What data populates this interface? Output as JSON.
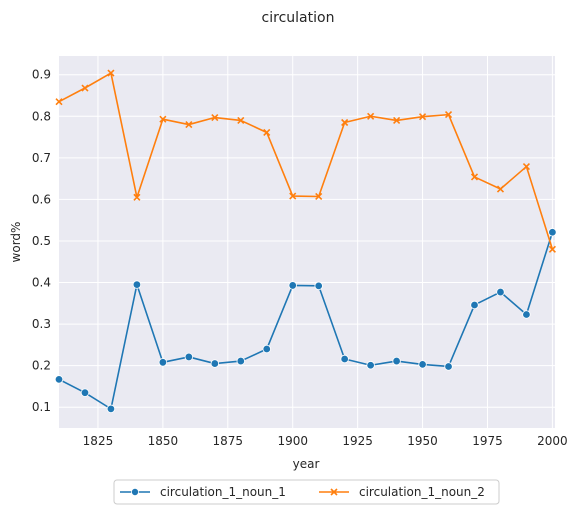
{
  "chart_data": {
    "type": "line",
    "title": "circulation",
    "xlabel": "year",
    "ylabel": "word%",
    "xlim": [
      1810,
      2001
    ],
    "ylim": [
      0.05,
      0.945
    ],
    "xticks": [
      1825,
      1850,
      1875,
      1900,
      1925,
      1950,
      1975,
      2000
    ],
    "xtick_labels": [
      "1825",
      "1850",
      "1875",
      "1900",
      "1925",
      "1950",
      "1975",
      "2000"
    ],
    "yticks": [
      0.1,
      0.2,
      0.3,
      0.4,
      0.5,
      0.6,
      0.7,
      0.8,
      0.9
    ],
    "ytick_labels": [
      "0.1",
      "0.2",
      "0.3",
      "0.4",
      "0.5",
      "0.6",
      "0.7",
      "0.8",
      "0.9"
    ],
    "grid": true,
    "legend_position": "bottom-center",
    "x": [
      1810,
      1820,
      1830,
      1840,
      1850,
      1860,
      1870,
      1880,
      1890,
      1900,
      1910,
      1920,
      1930,
      1940,
      1950,
      1960,
      1970,
      1980,
      1990,
      2000
    ],
    "series": [
      {
        "name": "circulation_1_noun_1",
        "color": "#1f77b4",
        "marker": "circle",
        "values": [
          0.167,
          0.135,
          0.096,
          0.395,
          0.208,
          0.221,
          0.205,
          0.211,
          0.24,
          0.393,
          0.392,
          0.216,
          0.201,
          0.211,
          0.203,
          0.198,
          0.346,
          0.377,
          0.323,
          0.521
        ]
      },
      {
        "name": "circulation_1_noun_2",
        "color": "#ff7f0e",
        "marker": "x",
        "values": [
          0.835,
          0.868,
          0.904,
          0.605,
          0.793,
          0.78,
          0.797,
          0.79,
          0.761,
          0.608,
          0.607,
          0.785,
          0.8,
          0.79,
          0.799,
          0.804,
          0.654,
          0.625,
          0.679,
          0.48
        ]
      }
    ]
  }
}
